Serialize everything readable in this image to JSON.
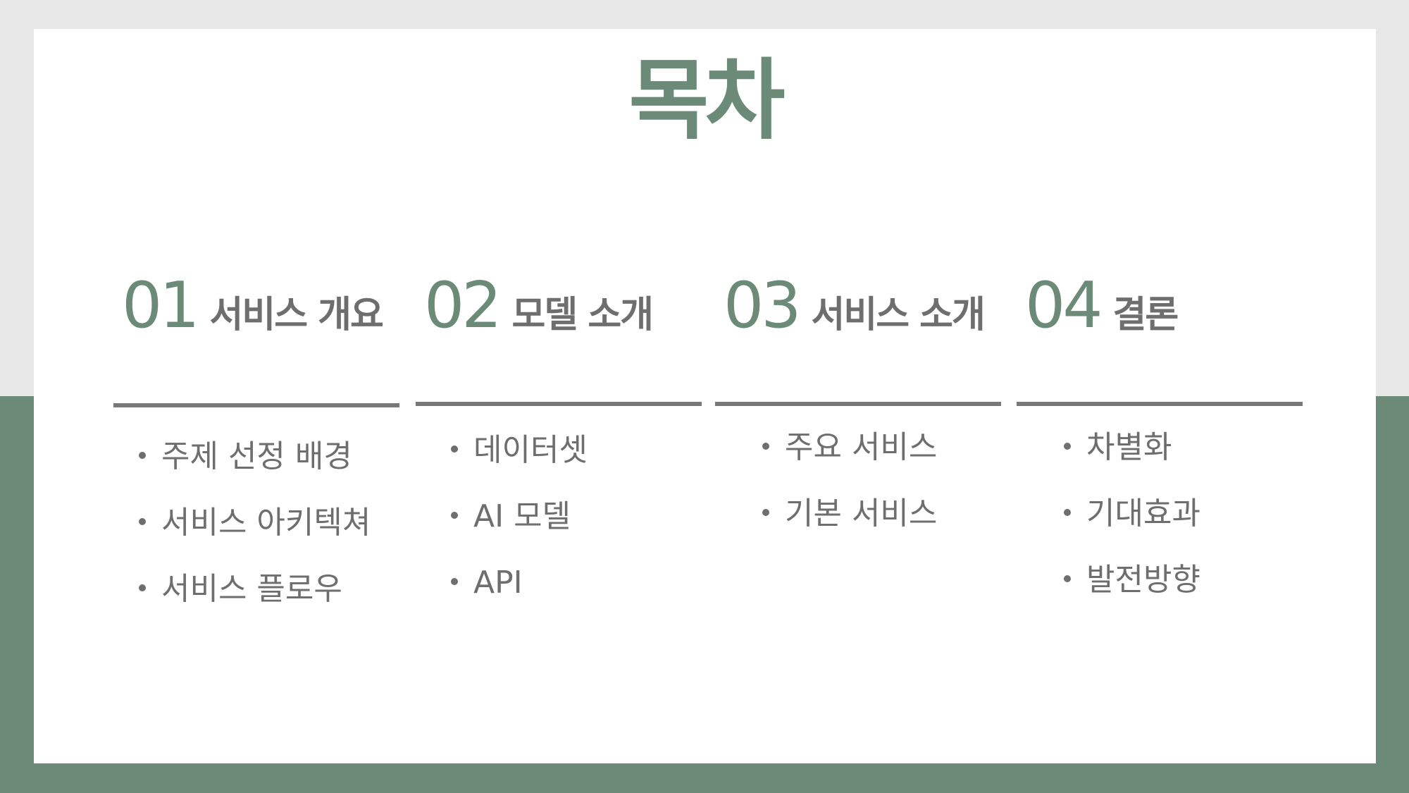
{
  "title": "목차",
  "colors": {
    "accent": "#6b8a78",
    "text": "#6e6e6e",
    "divider": "#787878",
    "background_top": "#e7e7e7",
    "slide": "#ffffff"
  },
  "sections": [
    {
      "number": "01",
      "title": "서비스 개요",
      "items": [
        "주제 선정 배경",
        "서비스 아키텍쳐",
        "서비스 플로우"
      ]
    },
    {
      "number": "02",
      "title": "모델 소개",
      "items": [
        "데이터셋",
        "AI 모델",
        "API"
      ]
    },
    {
      "number": "03",
      "title": "서비스 소개",
      "items": [
        "주요 서비스",
        "기본 서비스"
      ]
    },
    {
      "number": "04",
      "title": "결론",
      "items": [
        "차별화",
        "기대효과",
        "발전방향"
      ]
    }
  ]
}
